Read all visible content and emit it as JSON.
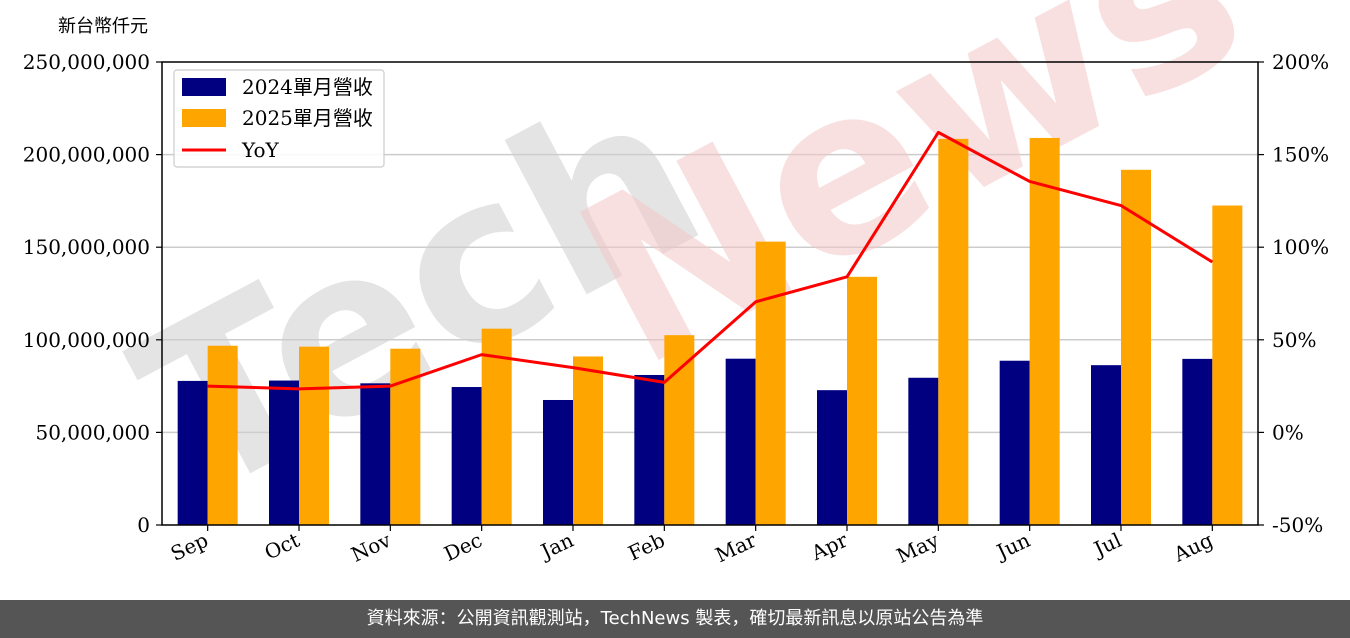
{
  "footer": {
    "source_text": "資料來源：公開資訊觀測站，TechNews 製表，確切最新訊息以原站公告為準"
  },
  "watermark": {
    "text": "TechNews",
    "tech_color": "#cfcfcf",
    "news_color": "#f3c7c7"
  },
  "chart_data": {
    "type": "bar",
    "title": "",
    "xlabel": "",
    "ylabel": "新台幣仟元",
    "categories": [
      "Sep",
      "Oct",
      "Nov",
      "Dec",
      "Jan",
      "Feb",
      "Mar",
      "Apr",
      "May",
      "Jun",
      "Jul",
      "Aug"
    ],
    "series": [
      {
        "name": "2024單月營收",
        "type": "bar",
        "color": "#000080",
        "values": [
          77800000,
          78000000,
          76500000,
          74500000,
          67500000,
          81000000,
          89800000,
          72800000,
          79500000,
          88700000,
          86300000,
          89700000
        ]
      },
      {
        "name": "2025單月營收",
        "type": "bar",
        "color": "#ffa500",
        "values": [
          96800000,
          96300000,
          95200000,
          106000000,
          91000000,
          102500000,
          153000000,
          134000000,
          208500000,
          209000000,
          191800000,
          172500000
        ]
      },
      {
        "name": "YoY",
        "type": "line",
        "axis": "right",
        "color": "#ff0000",
        "values": [
          25,
          23.5,
          25,
          42,
          35,
          27,
          70.5,
          84,
          162,
          135.5,
          122.5,
          92
        ]
      }
    ],
    "ylim": [
      0,
      250000000
    ],
    "y_ticks": [
      0,
      50000000,
      100000000,
      150000000,
      200000000,
      250000000
    ],
    "y_tick_labels": [
      "0",
      "50,000,000",
      "100,000,000",
      "150,000,000",
      "200,000,000",
      "250,000,000"
    ],
    "y2lim": [
      -50,
      200
    ],
    "y2_ticks": [
      -50,
      0,
      50,
      100,
      150,
      200
    ],
    "y2_tick_labels": [
      "-50%",
      "0%",
      "50%",
      "100%",
      "150%",
      "200%"
    ],
    "grid": "horizontal",
    "legend_position": "top-left"
  }
}
